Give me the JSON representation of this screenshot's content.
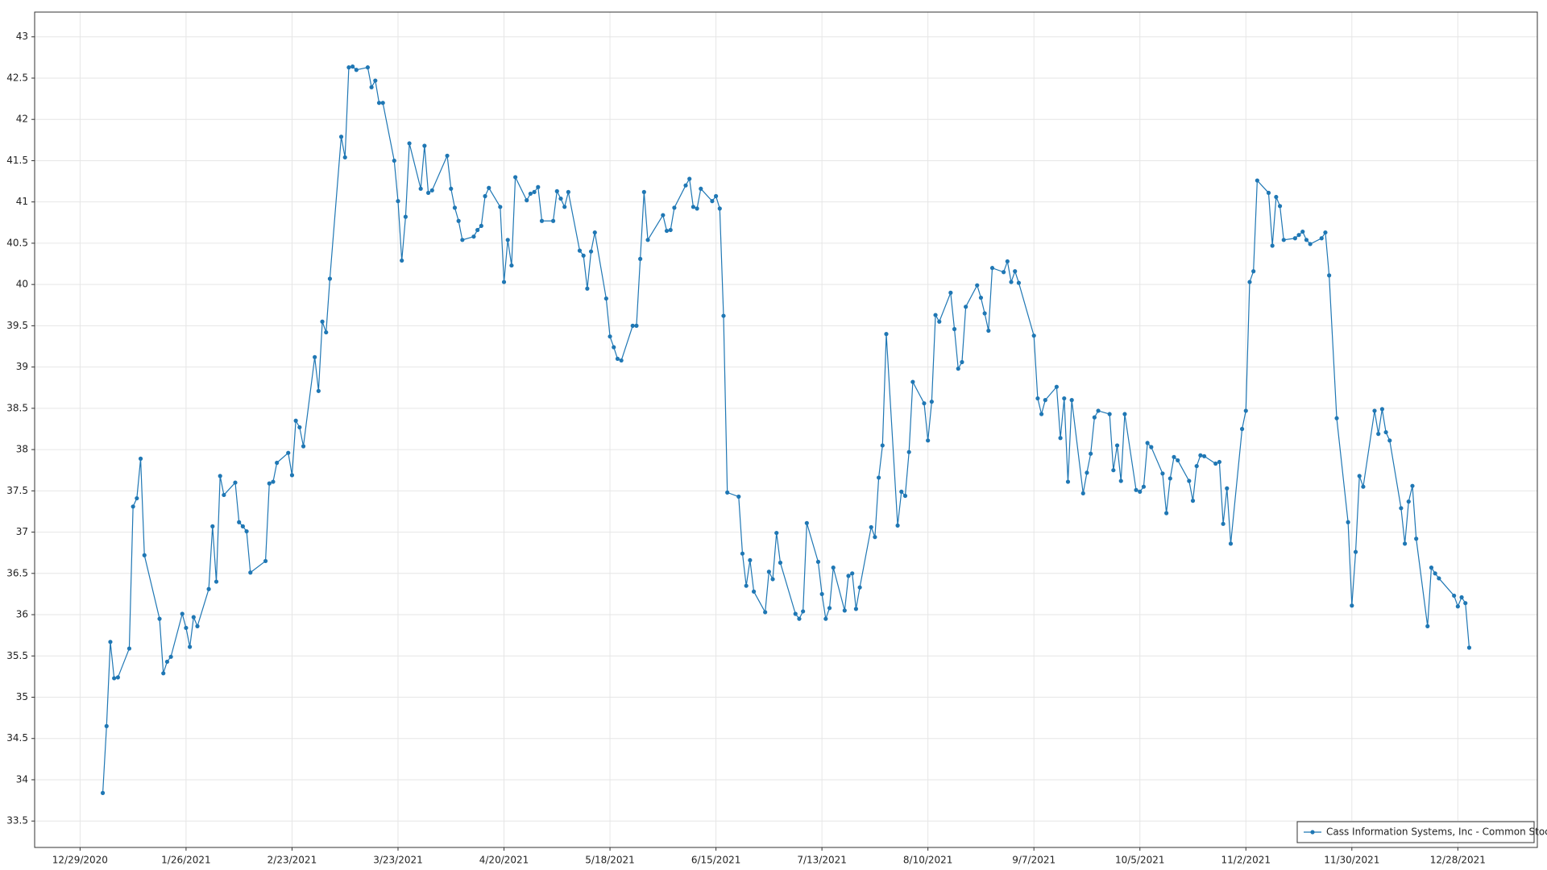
{
  "chart_data": {
    "type": "line",
    "x": [
      "1/4/2021",
      "1/5/2021",
      "1/6/2021",
      "1/7/2021",
      "1/8/2021",
      "1/11/2021",
      "1/12/2021",
      "1/13/2021",
      "1/14/2021",
      "1/15/2021",
      "1/19/2021",
      "1/20/2021",
      "1/21/2021",
      "1/22/2021",
      "1/25/2021",
      "1/26/2021",
      "1/27/2021",
      "1/28/2021",
      "1/29/2021",
      "2/1/2021",
      "2/2/2021",
      "2/3/2021",
      "2/4/2021",
      "2/5/2021",
      "2/8/2021",
      "2/9/2021",
      "2/10/2021",
      "2/11/2021",
      "2/12/2021",
      "2/16/2021",
      "2/17/2021",
      "2/18/2021",
      "2/19/2021",
      "2/22/2021",
      "2/23/2021",
      "2/24/2021",
      "2/25/2021",
      "2/26/2021",
      "3/1/2021",
      "3/2/2021",
      "3/3/2021",
      "3/4/2021",
      "3/5/2021",
      "3/8/2021",
      "3/9/2021",
      "3/10/2021",
      "3/11/2021",
      "3/12/2021",
      "3/15/2021",
      "3/16/2021",
      "3/17/2021",
      "3/18/2021",
      "3/19/2021",
      "3/22/2021",
      "3/23/2021",
      "3/24/2021",
      "3/25/2021",
      "3/26/2021",
      "3/29/2021",
      "3/30/2021",
      "3/31/2021",
      "4/1/2021",
      "4/5/2021",
      "4/6/2021",
      "4/7/2021",
      "4/8/2021",
      "4/9/2021",
      "4/12/2021",
      "4/13/2021",
      "4/14/2021",
      "4/15/2021",
      "4/16/2021",
      "4/19/2021",
      "4/20/2021",
      "4/21/2021",
      "4/22/2021",
      "4/23/2021",
      "4/26/2021",
      "4/27/2021",
      "4/28/2021",
      "4/29/2021",
      "4/30/2021",
      "5/3/2021",
      "5/4/2021",
      "5/5/2021",
      "5/6/2021",
      "5/7/2021",
      "5/10/2021",
      "5/11/2021",
      "5/12/2021",
      "5/13/2021",
      "5/14/2021",
      "5/17/2021",
      "5/18/2021",
      "5/19/2021",
      "5/20/2021",
      "5/21/2021",
      "5/24/2021",
      "5/25/2021",
      "5/26/2021",
      "5/27/2021",
      "5/28/2021",
      "6/1/2021",
      "6/2/2021",
      "6/3/2021",
      "6/4/2021",
      "6/7/2021",
      "6/8/2021",
      "6/9/2021",
      "6/10/2021",
      "6/11/2021",
      "6/14/2021",
      "6/15/2021",
      "6/16/2021",
      "6/17/2021",
      "6/18/2021",
      "6/21/2021",
      "6/22/2021",
      "6/23/2021",
      "6/24/2021",
      "6/25/2021",
      "6/28/2021",
      "6/29/2021",
      "6/30/2021",
      "7/1/2021",
      "7/2/2021",
      "7/6/2021",
      "7/7/2021",
      "7/8/2021",
      "7/9/2021",
      "7/12/2021",
      "7/13/2021",
      "7/14/2021",
      "7/15/2021",
      "7/16/2021",
      "7/19/2021",
      "7/20/2021",
      "7/21/2021",
      "7/22/2021",
      "7/23/2021",
      "7/26/2021",
      "7/27/2021",
      "7/28/2021",
      "7/29/2021",
      "7/30/2021",
      "8/2/2021",
      "8/3/2021",
      "8/4/2021",
      "8/5/2021",
      "8/6/2021",
      "8/9/2021",
      "8/10/2021",
      "8/11/2021",
      "8/12/2021",
      "8/13/2021",
      "8/16/2021",
      "8/17/2021",
      "8/18/2021",
      "8/19/2021",
      "8/20/2021",
      "8/23/2021",
      "8/24/2021",
      "8/25/2021",
      "8/26/2021",
      "8/27/2021",
      "8/30/2021",
      "8/31/2021",
      "9/1/2021",
      "9/2/2021",
      "9/3/2021",
      "9/7/2021",
      "9/8/2021",
      "9/9/2021",
      "9/10/2021",
      "9/13/2021",
      "9/14/2021",
      "9/15/2021",
      "9/16/2021",
      "9/17/2021",
      "9/20/2021",
      "9/21/2021",
      "9/22/2021",
      "9/23/2021",
      "9/24/2021",
      "9/27/2021",
      "9/28/2021",
      "9/29/2021",
      "9/30/2021",
      "10/1/2021",
      "10/4/2021",
      "10/5/2021",
      "10/6/2021",
      "10/7/2021",
      "10/8/2021",
      "10/11/2021",
      "10/12/2021",
      "10/13/2021",
      "10/14/2021",
      "10/15/2021",
      "10/18/2021",
      "10/19/2021",
      "10/20/2021",
      "10/21/2021",
      "10/22/2021",
      "10/25/2021",
      "10/26/2021",
      "10/27/2021",
      "10/28/2021",
      "10/29/2021",
      "11/1/2021",
      "11/2/2021",
      "11/3/2021",
      "11/4/2021",
      "11/5/2021",
      "11/8/2021",
      "11/9/2021",
      "11/10/2021",
      "11/11/2021",
      "11/12/2021",
      "11/15/2021",
      "11/16/2021",
      "11/17/2021",
      "11/18/2021",
      "11/19/2021",
      "11/22/2021",
      "11/23/2021",
      "11/24/2021",
      "11/26/2021",
      "11/29/2021",
      "11/30/2021",
      "12/1/2021",
      "12/2/2021",
      "12/3/2021",
      "12/6/2021",
      "12/7/2021",
      "12/8/2021",
      "12/9/2021",
      "12/10/2021",
      "12/13/2021",
      "12/14/2021",
      "12/15/2021",
      "12/16/2021",
      "12/17/2021",
      "12/20/2021",
      "12/21/2021",
      "12/22/2021",
      "12/23/2021",
      "12/27/2021",
      "12/28/2021",
      "12/29/2021",
      "12/30/2021",
      "12/31/2021"
    ],
    "series": [
      {
        "name": "Cass Information Systems, Inc - Common Stock",
        "color": "#1f77b4",
        "values": [
          33.84,
          34.65,
          35.67,
          35.23,
          35.24,
          35.59,
          37.31,
          37.41,
          37.89,
          36.72,
          35.95,
          35.29,
          35.43,
          35.49,
          36.01,
          35.84,
          35.61,
          35.97,
          35.86,
          36.31,
          37.07,
          36.4,
          37.68,
          37.45,
          37.6,
          37.12,
          37.07,
          37.01,
          36.51,
          36.65,
          37.59,
          37.61,
          37.84,
          37.96,
          37.69,
          38.35,
          38.27,
          38.04,
          39.12,
          38.71,
          39.55,
          39.42,
          40.07,
          41.79,
          41.54,
          42.63,
          42.64,
          42.6,
          42.63,
          42.39,
          42.47,
          42.2,
          42.2,
          41.5,
          41.01,
          40.29,
          40.82,
          41.71,
          41.16,
          41.68,
          41.11,
          41.14,
          41.56,
          41.16,
          40.93,
          40.77,
          40.54,
          40.58,
          40.66,
          40.71,
          41.07,
          41.17,
          40.94,
          40.03,
          40.54,
          40.23,
          41.3,
          41.02,
          41.1,
          41.12,
          41.18,
          40.77,
          40.77,
          41.13,
          41.04,
          40.94,
          41.12,
          40.41,
          40.35,
          39.95,
          40.4,
          40.63,
          39.83,
          39.37,
          39.24,
          39.1,
          39.08,
          39.5,
          39.5,
          40.31,
          41.12,
          40.54,
          40.84,
          40.65,
          40.66,
          40.93,
          41.2,
          41.28,
          40.94,
          40.92,
          41.16,
          41.01,
          41.07,
          40.92,
          39.62,
          37.48,
          37.43,
          36.74,
          36.35,
          36.66,
          36.28,
          36.03,
          36.52,
          36.43,
          36.99,
          36.63,
          36.01,
          35.95,
          36.04,
          37.11,
          36.64,
          36.25,
          35.95,
          36.08,
          36.57,
          36.05,
          36.47,
          36.5,
          36.07,
          36.33,
          37.06,
          36.94,
          37.66,
          38.05,
          39.4,
          37.08,
          37.49,
          37.44,
          37.97,
          38.82,
          38.56,
          38.11,
          38.58,
          39.63,
          39.55,
          39.9,
          39.46,
          38.98,
          39.06,
          39.73,
          39.99,
          39.84,
          39.65,
          39.44,
          40.2,
          40.15,
          40.28,
          40.03,
          40.16,
          40.02,
          39.38,
          38.62,
          38.43,
          38.6,
          38.76,
          38.14,
          38.62,
          37.61,
          38.6,
          37.47,
          37.72,
          37.95,
          38.39,
          38.47,
          38.43,
          37.75,
          38.05,
          37.62,
          38.43,
          37.51,
          37.49,
          37.55,
          38.08,
          38.03,
          37.71,
          37.23,
          37.65,
          37.91,
          37.87,
          37.62,
          37.38,
          37.8,
          37.93,
          37.92,
          37.83,
          37.85,
          37.1,
          37.53,
          36.86,
          38.25,
          38.47,
          40.03,
          40.16,
          41.26,
          41.11,
          40.47,
          41.06,
          40.95,
          40.54,
          40.56,
          40.6,
          40.64,
          40.54,
          40.49,
          40.56,
          40.63,
          40.11,
          38.38,
          37.12,
          36.11,
          36.76,
          37.68,
          37.55,
          38.47,
          38.19,
          38.49,
          38.21,
          38.11,
          37.29,
          36.86,
          37.37,
          37.56,
          36.92,
          35.86,
          36.57,
          36.5,
          36.44,
          36.23,
          36.1,
          36.21,
          36.14,
          35.6
        ]
      }
    ],
    "xlim": [
      "12/17/2020",
      "1/18/2022"
    ],
    "xticks": [
      "12/29/2020",
      "1/26/2021",
      "2/23/2021",
      "3/23/2021",
      "4/20/2021",
      "5/18/2021",
      "6/15/2021",
      "7/13/2021",
      "8/10/2021",
      "9/7/2021",
      "10/5/2021",
      "11/2/2021",
      "11/30/2021",
      "12/28/2021"
    ],
    "ylim": [
      33.18,
      43.3
    ],
    "yticks": [
      33.5,
      34,
      34.5,
      35,
      35.5,
      36,
      36.5,
      37,
      37.5,
      38,
      38.5,
      39,
      39.5,
      40,
      40.5,
      41,
      41.5,
      42,
      42.5,
      43
    ],
    "grid": true,
    "legend": "lower right"
  }
}
